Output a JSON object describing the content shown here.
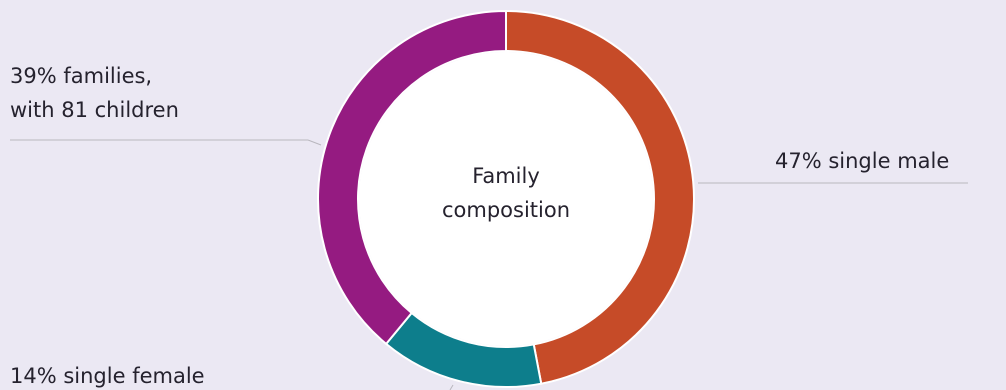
{
  "chart_data": {
    "type": "pie",
    "center_label": [
      "Family",
      "composition"
    ],
    "slices": [
      {
        "label": "47% single male",
        "value": 47,
        "color": "#c64b28"
      },
      {
        "label": "14% single female",
        "value": 14,
        "color": "#0d7e8c"
      },
      {
        "label": [
          "39% families,",
          "with 81 children"
        ],
        "value": 39,
        "color": "#951b81"
      }
    ]
  }
}
